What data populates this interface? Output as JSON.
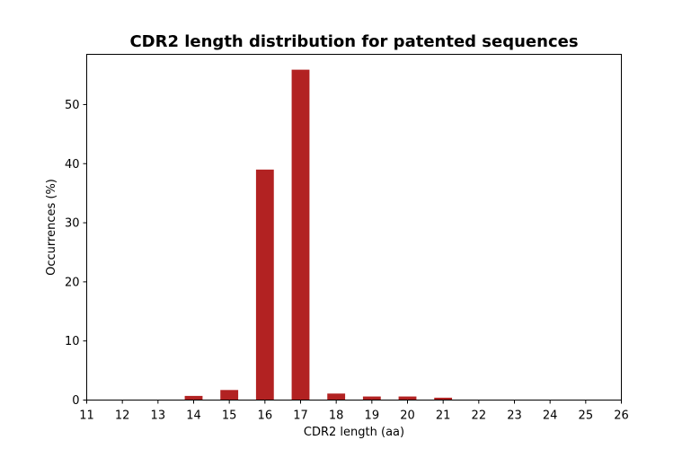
{
  "chart_data": {
    "type": "bar",
    "title": "CDR2 length distribution for patented sequences",
    "xlabel": "CDR2 length (aa)",
    "ylabel": "Occurrences (%)",
    "xlim": [
      11,
      26
    ],
    "ylim": [
      0,
      58.5
    ],
    "x_ticks": [
      11,
      12,
      13,
      14,
      15,
      16,
      17,
      18,
      19,
      20,
      21,
      22,
      23,
      24,
      25,
      26
    ],
    "y_ticks": [
      0,
      10,
      20,
      30,
      40,
      50
    ],
    "x": [
      14,
      15,
      16,
      17,
      18,
      19,
      20,
      21
    ],
    "values": [
      0.7,
      1.7,
      39.0,
      55.9,
      1.1,
      0.6,
      0.6,
      0.4
    ],
    "bar_color": "#b22222",
    "grid": false
  }
}
